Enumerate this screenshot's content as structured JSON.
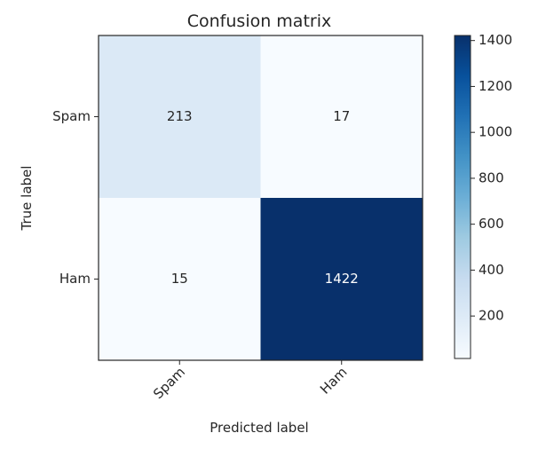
{
  "chart_data": {
    "type": "heatmap",
    "title": "Confusion matrix",
    "xlabel": "Predicted label",
    "ylabel": "True label",
    "row_labels": [
      "Spam",
      "Ham"
    ],
    "col_labels": [
      "Spam",
      "Ham"
    ],
    "values": [
      [
        213,
        17
      ],
      [
        15,
        1422
      ]
    ],
    "colormap": [
      "#f7fbff",
      "#deebf7",
      "#c6dbef",
      "#9ecae1",
      "#6baed6",
      "#4292c6",
      "#2171b5",
      "#08519c",
      "#08306b"
    ],
    "colorbar": {
      "min": 15,
      "max": 1422,
      "ticks": [
        200,
        400,
        600,
        800,
        1000,
        1200,
        1400
      ]
    },
    "text_color_dark": "#262626",
    "text_color_light": "#ffffff"
  }
}
